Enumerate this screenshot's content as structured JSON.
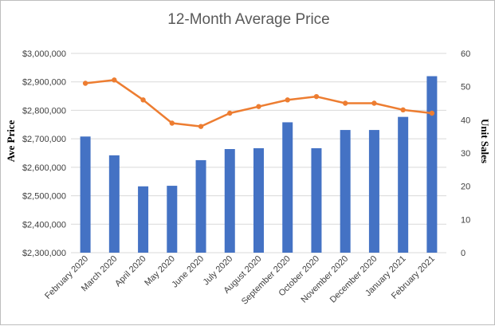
{
  "chart_data": {
    "type": "bar+line",
    "title": "12-Month Average Price",
    "ylabel": "Ave Price",
    "y2label": "Unit Sales",
    "ylim": [
      2300000,
      3000000
    ],
    "y2lim": [
      0,
      60
    ],
    "grid": true,
    "legend": "none",
    "y_ticks": [
      "$2,300,000",
      "$2,400,000",
      "$2,500,000",
      "$2,600,000",
      "$2,700,000",
      "$2,800,000",
      "$2,900,000",
      "$3,000,000"
    ],
    "y2_ticks": [
      "0",
      "10",
      "20",
      "30",
      "40",
      "50",
      "60"
    ],
    "categories": [
      "February 2020",
      "March 2020",
      "April 2020",
      "May 2020",
      "June 2020",
      "July 2020",
      "August 2020",
      "September 2020",
      "October 2020",
      "November 2020",
      "December 2020",
      "January 2021",
      "February 2021"
    ],
    "series": [
      {
        "type": "bar",
        "axis": "left",
        "color": "#4472c4",
        "values": [
          2708000,
          2642000,
          2533000,
          2535000,
          2625000,
          2664000,
          2667000,
          2758000,
          2667000,
          2731000,
          2731000,
          2777000,
          2920000
        ]
      },
      {
        "type": "line",
        "axis": "right",
        "color": "#ed7d31",
        "values": [
          51,
          52,
          46,
          39,
          38,
          42,
          44,
          46,
          47,
          45,
          45,
          43,
          42
        ]
      }
    ]
  }
}
